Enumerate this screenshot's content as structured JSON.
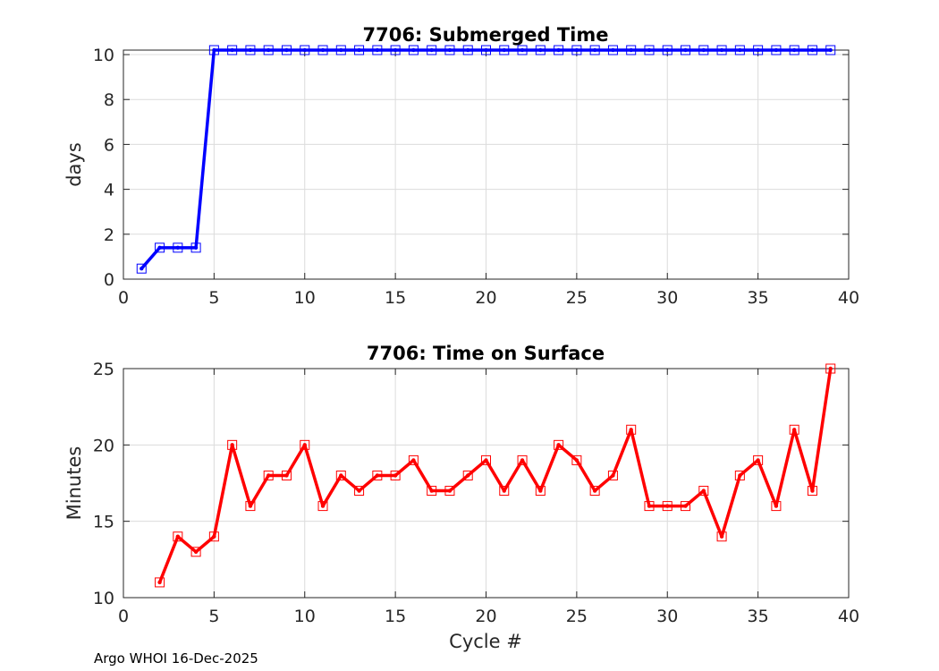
{
  "footer": "Argo WHOI 16-Dec-2025",
  "chart_data": [
    {
      "type": "line",
      "title": "7706: Submerged Time",
      "xlabel": "",
      "ylabel": "days",
      "xlim": [
        0,
        40
      ],
      "ylim": [
        0,
        10.2
      ],
      "xticks": [
        0,
        5,
        10,
        15,
        20,
        25,
        30,
        35,
        40
      ],
      "yticks": [
        0,
        2,
        4,
        6,
        8,
        10
      ],
      "grid": true,
      "color": "#0000ff",
      "marker": "square",
      "series": [
        {
          "name": "Submerged Time",
          "x": [
            1,
            2,
            3,
            4,
            5,
            6,
            7,
            8,
            9,
            10,
            11,
            12,
            13,
            14,
            15,
            16,
            17,
            18,
            19,
            20,
            21,
            22,
            23,
            24,
            25,
            26,
            27,
            28,
            29,
            30,
            31,
            32,
            33,
            34,
            35,
            36,
            37,
            38,
            39
          ],
          "y": [
            0.47,
            1.4,
            1.4,
            1.4,
            10.2,
            10.2,
            10.2,
            10.2,
            10.2,
            10.2,
            10.2,
            10.2,
            10.2,
            10.2,
            10.2,
            10.2,
            10.2,
            10.2,
            10.2,
            10.2,
            10.2,
            10.2,
            10.2,
            10.2,
            10.2,
            10.2,
            10.2,
            10.2,
            10.2,
            10.2,
            10.2,
            10.2,
            10.2,
            10.2,
            10.2,
            10.2,
            10.2,
            10.2,
            10.2
          ]
        }
      ]
    },
    {
      "type": "line",
      "title": "7706: Time on Surface",
      "xlabel": "Cycle #",
      "ylabel": "Minutes",
      "xlim": [
        0,
        40
      ],
      "ylim": [
        10,
        25
      ],
      "xticks": [
        0,
        5,
        10,
        15,
        20,
        25,
        30,
        35,
        40
      ],
      "yticks": [
        10,
        15,
        20,
        25
      ],
      "grid": true,
      "color": "#ff0000",
      "marker": "square",
      "series": [
        {
          "name": "Time on Surface",
          "x": [
            2,
            3,
            4,
            5,
            6,
            7,
            8,
            9,
            10,
            11,
            12,
            13,
            14,
            15,
            16,
            17,
            18,
            19,
            20,
            21,
            22,
            23,
            24,
            25,
            26,
            27,
            28,
            29,
            30,
            31,
            32,
            33,
            34,
            35,
            36,
            37,
            38,
            39
          ],
          "y": [
            11,
            14,
            13,
            14,
            20,
            16,
            18,
            18,
            20,
            16,
            18,
            17,
            18,
            18,
            19,
            17,
            17,
            18,
            19,
            17,
            19,
            17,
            20,
            19,
            17,
            18,
            21,
            16,
            16,
            16,
            17,
            14,
            18,
            19,
            16,
            21,
            17,
            25
          ]
        }
      ]
    }
  ]
}
